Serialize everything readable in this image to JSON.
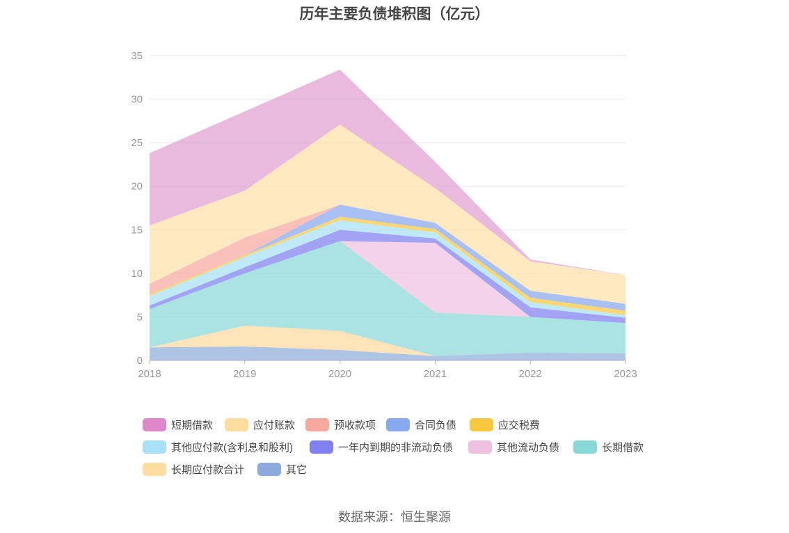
{
  "chart_data": {
    "type": "area",
    "stacked": true,
    "title": "历年主要负债堆积图（亿元）",
    "x": [
      "2018",
      "2019",
      "2020",
      "2021",
      "2022",
      "2023"
    ],
    "ylim": [
      0,
      35
    ],
    "yticks": [
      0,
      5,
      10,
      15,
      20,
      25,
      30,
      35
    ],
    "grid": true,
    "legend_position": "bottom",
    "series": [
      {
        "name": "其它",
        "color": "#8fadd9",
        "values": [
          1.5,
          1.6,
          1.2,
          0.5,
          0.9,
          0.8
        ]
      },
      {
        "name": "长期应付款合计",
        "color": "#ffd99e",
        "values": [
          0.0,
          2.4,
          2.2,
          0.0,
          0.0,
          0.0
        ]
      },
      {
        "name": "长期借款",
        "color": "#8ad8d8",
        "values": [
          4.4,
          6.0,
          10.3,
          5.0,
          4.1,
          3.5
        ]
      },
      {
        "name": "其他流动负债",
        "color": "#f0c0e0",
        "values": [
          0.0,
          0.0,
          0.0,
          8.0,
          0.0,
          0.0
        ]
      },
      {
        "name": "一年内到期的非流动负债",
        "color": "#8080f0",
        "values": [
          0.4,
          0.7,
          1.3,
          0.5,
          1.1,
          0.6
        ]
      },
      {
        "name": "其他应付款(含利息和股利)",
        "color": "#a8e0f5",
        "values": [
          1.1,
          1.2,
          1.1,
          0.7,
          0.6,
          0.3
        ]
      },
      {
        "name": "应交税费",
        "color": "#f8c840",
        "values": [
          0.2,
          0.2,
          0.4,
          0.4,
          0.5,
          0.5
        ]
      },
      {
        "name": "合同负债",
        "color": "#88a8f0",
        "values": [
          0.0,
          0.0,
          1.4,
          0.7,
          0.8,
          0.8
        ]
      },
      {
        "name": "预收款项",
        "color": "#f8a8a0",
        "values": [
          1.2,
          2.0,
          0.0,
          0.0,
          0.0,
          0.0
        ]
      },
      {
        "name": "应付账款",
        "color": "#ffe0a8",
        "values": [
          6.7,
          5.4,
          9.2,
          4.0,
          3.4,
          3.3
        ]
      },
      {
        "name": "短期借款",
        "color": "#e0a0d0",
        "values": [
          8.3,
          9.1,
          6.3,
          3.0,
          0.2,
          0.0
        ]
      }
    ],
    "legend": [
      {
        "name": "短期借款",
        "color": "#dd88c8"
      },
      {
        "name": "应付账款",
        "color": "#ffdda0"
      },
      {
        "name": "预收款项",
        "color": "#f8a89c"
      },
      {
        "name": "合同负债",
        "color": "#88a8f0"
      },
      {
        "name": "应交税费",
        "color": "#f8c840"
      },
      {
        "name": "其他应付款(含利息和股利)",
        "color": "#a8e0f8"
      },
      {
        "name": "一年内到期的非流动负债",
        "color": "#8080f0"
      },
      {
        "name": "其他流动负债",
        "color": "#f0c0e0"
      },
      {
        "name": "长期借款",
        "color": "#88d8d8"
      },
      {
        "name": "长期应付款合计",
        "color": "#ffdda0"
      },
      {
        "name": "其它",
        "color": "#8caadc"
      }
    ]
  },
  "source": "数据来源：恒生聚源"
}
